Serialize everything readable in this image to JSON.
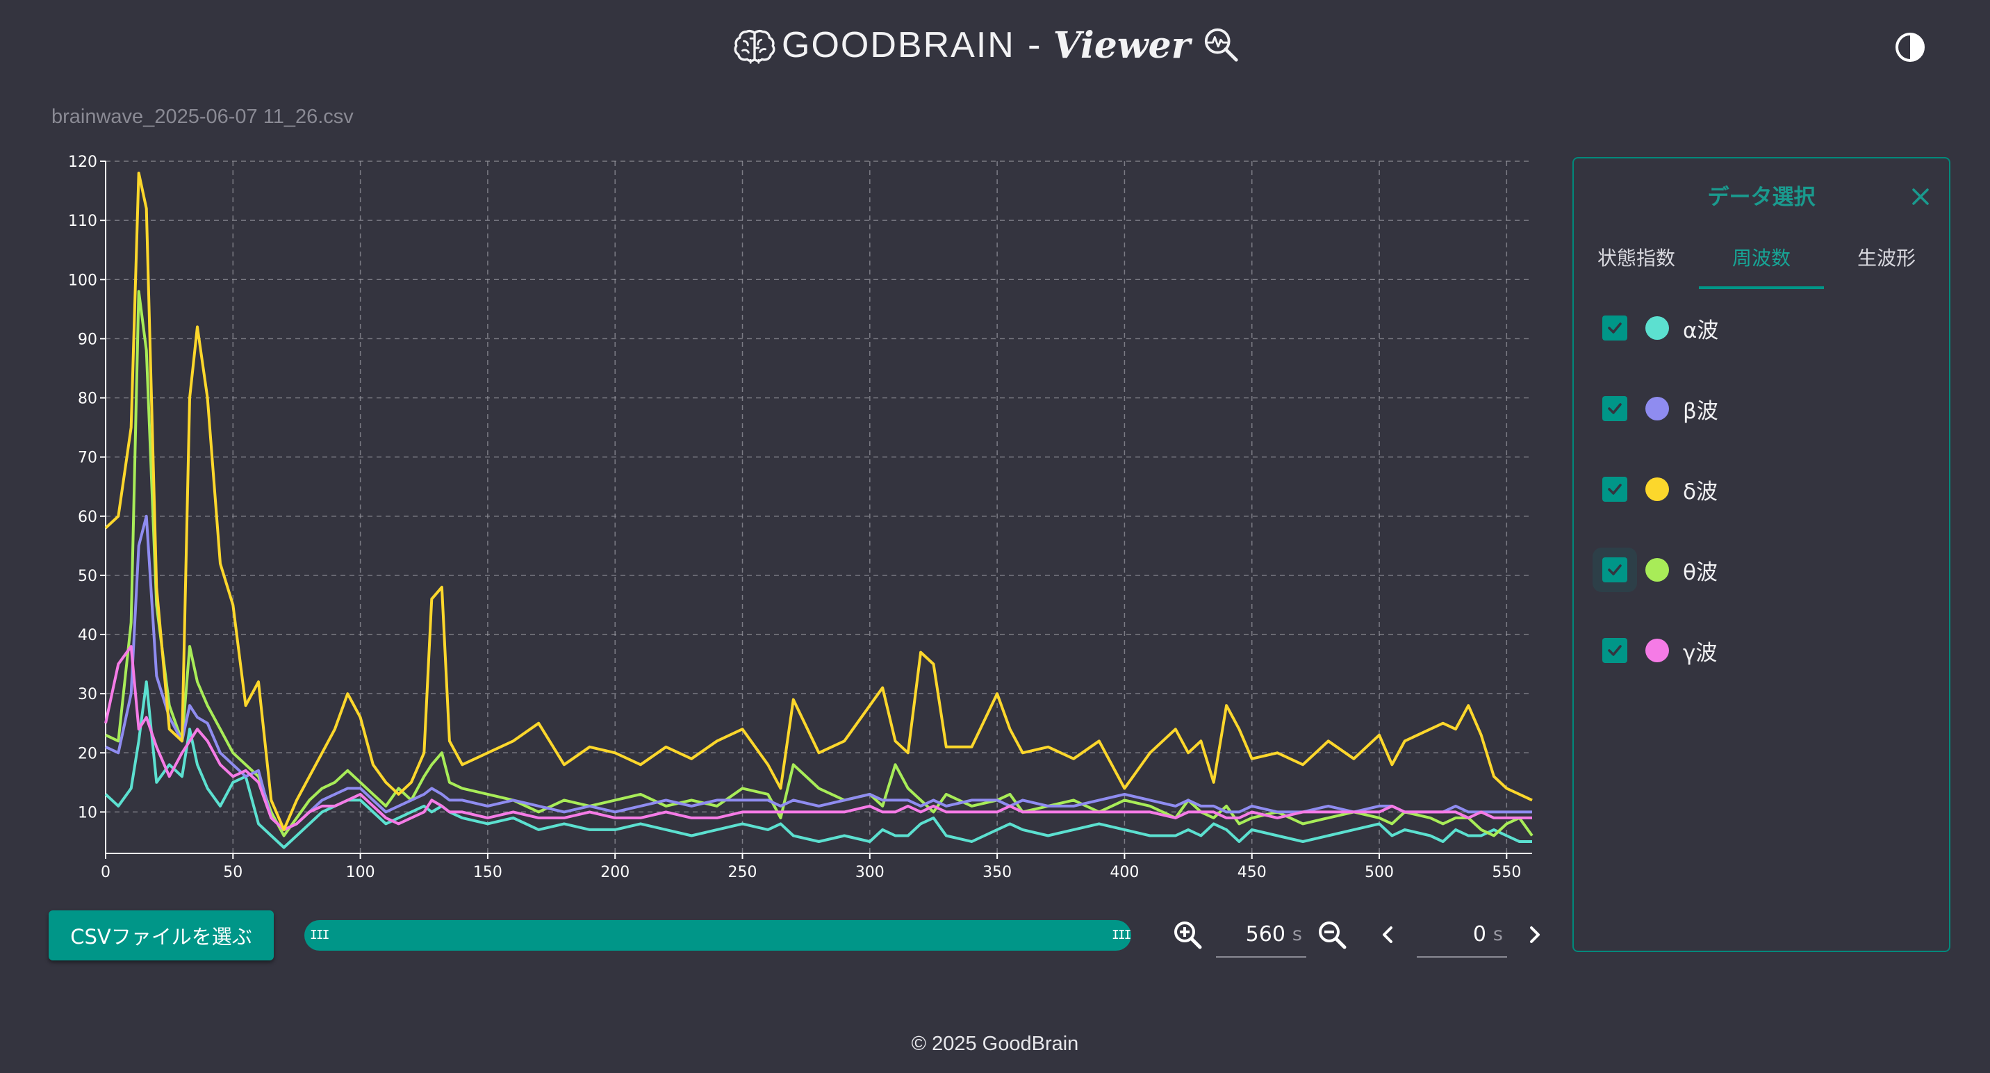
{
  "header": {
    "brand": "GOODBRAIN",
    "separator": "-",
    "viewer": "Viewer"
  },
  "file_name": "brainwave_2025-06-07 11_26.csv",
  "chart_data": {
    "type": "line",
    "xlim": [
      0,
      560
    ],
    "ylim": [
      3,
      120
    ],
    "x_ticks": [
      "0",
      "50",
      "100",
      "150",
      "200",
      "250",
      "300",
      "350",
      "400",
      "450",
      "500",
      "550"
    ],
    "y_ticks": [
      "10",
      "20",
      "30",
      "40",
      "50",
      "60",
      "70",
      "80",
      "90",
      "100",
      "110",
      "120"
    ],
    "grid": true,
    "x": [
      0,
      5,
      10,
      13,
      16,
      20,
      25,
      30,
      33,
      36,
      40,
      45,
      50,
      55,
      60,
      65,
      70,
      75,
      80,
      85,
      90,
      95,
      100,
      105,
      110,
      115,
      120,
      125,
      128,
      132,
      135,
      140,
      150,
      160,
      170,
      180,
      190,
      200,
      210,
      220,
      230,
      240,
      250,
      260,
      265,
      270,
      280,
      290,
      300,
      305,
      310,
      315,
      320,
      325,
      330,
      340,
      350,
      355,
      360,
      370,
      380,
      390,
      400,
      410,
      420,
      425,
      430,
      435,
      440,
      445,
      450,
      460,
      470,
      480,
      490,
      500,
      505,
      510,
      520,
      525,
      530,
      535,
      540,
      545,
      550,
      555,
      560
    ],
    "series": [
      {
        "name": "α波",
        "color": "#5ce0d0",
        "values": [
          13,
          11,
          14,
          22,
          32,
          15,
          18,
          16,
          24,
          18,
          14,
          11,
          15,
          16,
          8,
          6,
          4,
          6,
          8,
          10,
          11,
          12,
          12,
          10,
          8,
          9,
          10,
          11,
          10,
          11,
          10,
          9,
          8,
          9,
          7,
          8,
          7,
          7,
          8,
          7,
          6,
          7,
          8,
          7,
          8,
          6,
          5,
          6,
          5,
          7,
          6,
          6,
          8,
          9,
          6,
          5,
          7,
          8,
          7,
          6,
          7,
          8,
          7,
          6,
          6,
          7,
          6,
          8,
          7,
          5,
          7,
          6,
          5,
          6,
          7,
          8,
          6,
          7,
          6,
          5,
          7,
          6,
          6,
          7,
          6,
          5,
          5
        ]
      },
      {
        "name": "β波",
        "color": "#8f8cf0",
        "values": [
          21,
          20,
          30,
          55,
          60,
          33,
          26,
          22,
          28,
          26,
          25,
          20,
          18,
          16,
          17,
          9,
          7,
          8,
          10,
          12,
          13,
          14,
          14,
          12,
          10,
          11,
          12,
          13,
          14,
          13,
          12,
          12,
          11,
          12,
          11,
          10,
          11,
          10,
          11,
          12,
          11,
          12,
          12,
          12,
          11,
          12,
          11,
          12,
          13,
          12,
          12,
          12,
          11,
          12,
          11,
          12,
          12,
          11,
          12,
          11,
          11,
          12,
          13,
          12,
          11,
          12,
          11,
          11,
          10,
          10,
          11,
          10,
          10,
          11,
          10,
          11,
          11,
          10,
          10,
          10,
          11,
          10,
          10,
          10,
          10,
          10,
          10
        ]
      },
      {
        "name": "δ波",
        "color": "#fcd72c",
        "values": [
          58,
          60,
          75,
          118,
          112,
          48,
          24,
          22,
          80,
          92,
          80,
          52,
          45,
          28,
          32,
          12,
          7,
          12,
          16,
          20,
          24,
          30,
          26,
          18,
          15,
          13,
          15,
          20,
          46,
          48,
          22,
          18,
          20,
          22,
          25,
          18,
          21,
          20,
          18,
          21,
          19,
          22,
          24,
          18,
          14,
          29,
          20,
          22,
          28,
          31,
          22,
          20,
          37,
          35,
          21,
          21,
          30,
          24,
          20,
          21,
          19,
          22,
          14,
          20,
          24,
          20,
          22,
          15,
          28,
          24,
          19,
          20,
          18,
          22,
          19,
          23,
          18,
          22,
          24,
          25,
          24,
          28,
          23,
          16,
          14,
          13,
          12
        ]
      },
      {
        "name": "θ波",
        "color": "#a8ec58",
        "values": [
          23,
          22,
          42,
          98,
          88,
          45,
          28,
          22,
          38,
          32,
          28,
          24,
          20,
          18,
          16,
          10,
          6,
          9,
          12,
          14,
          15,
          17,
          15,
          13,
          11,
          14,
          12,
          16,
          18,
          20,
          15,
          14,
          13,
          12,
          10,
          12,
          11,
          12,
          13,
          11,
          12,
          11,
          14,
          13,
          9,
          18,
          14,
          12,
          13,
          11,
          18,
          14,
          12,
          10,
          13,
          11,
          12,
          13,
          10,
          11,
          12,
          10,
          12,
          11,
          9,
          12,
          10,
          9,
          11,
          8,
          9,
          10,
          8,
          9,
          10,
          9,
          8,
          10,
          9,
          8,
          9,
          9,
          7,
          6,
          8,
          9,
          6
        ]
      },
      {
        "name": "γ波",
        "color": "#f57be6",
        "values": [
          25,
          35,
          38,
          24,
          26,
          21,
          16,
          20,
          22,
          24,
          22,
          18,
          16,
          17,
          15,
          9,
          7,
          8,
          10,
          11,
          11,
          12,
          13,
          11,
          9,
          8,
          9,
          10,
          12,
          11,
          10,
          10,
          9,
          10,
          9,
          9,
          10,
          9,
          9,
          10,
          9,
          9,
          10,
          10,
          10,
          10,
          10,
          10,
          11,
          10,
          10,
          11,
          10,
          11,
          10,
          10,
          10,
          11,
          10,
          10,
          10,
          10,
          10,
          10,
          9,
          10,
          10,
          10,
          9,
          9,
          10,
          9,
          10,
          10,
          10,
          10,
          11,
          10,
          10,
          10,
          10,
          9,
          10,
          9,
          9,
          9,
          9
        ]
      }
    ]
  },
  "controls": {
    "csv_button": "CSVファイルを選ぶ",
    "range_handle_left": "III",
    "range_handle_right": "III",
    "window_value": "560",
    "window_unit": "s",
    "offset_value": "0",
    "offset_unit": "s"
  },
  "panel": {
    "title": "データ選択",
    "tabs": [
      {
        "label": "状態指数",
        "active": false
      },
      {
        "label": "周波数",
        "active": true
      },
      {
        "label": "生波形",
        "active": false
      }
    ],
    "items": [
      {
        "label": "α波",
        "color": "#5ce0d0",
        "checked": true
      },
      {
        "label": "β波",
        "color": "#8f8cf0",
        "checked": true
      },
      {
        "label": "δ波",
        "color": "#fcd72c",
        "checked": true
      },
      {
        "label": "θ波",
        "color": "#a8ec58",
        "checked": true
      },
      {
        "label": "γ波",
        "color": "#f57be6",
        "checked": true
      }
    ]
  },
  "icons": {
    "brain": "brain-icon",
    "magnifier": "magnifier-wave-icon",
    "theme": "contrast-icon",
    "zoom_in": "zoom-in-icon",
    "zoom_out": "zoom-out-icon",
    "prev": "chevron-left-icon",
    "next": "chevron-right-icon",
    "close": "close-icon",
    "check": "check-icon"
  },
  "footer": "© 2025 GoodBrain"
}
